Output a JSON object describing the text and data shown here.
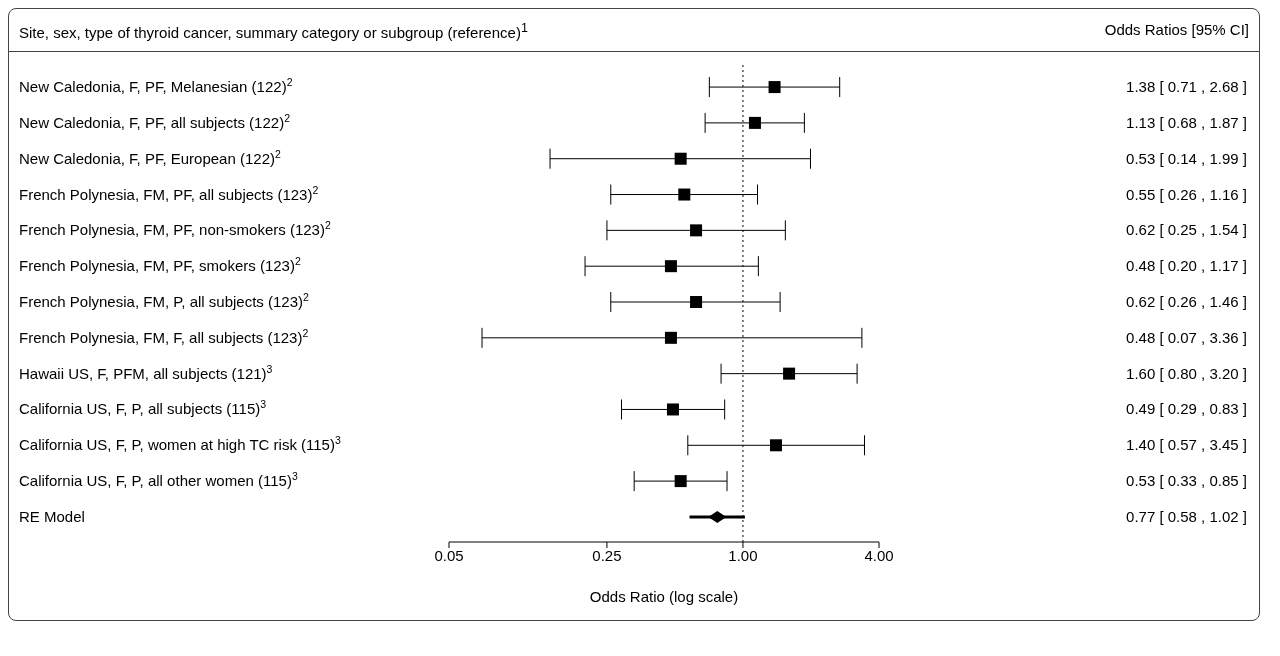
{
  "chart_data": {
    "type": "scatter",
    "orientation": "horizontal",
    "annotations": [
      "Site, sex, type of thyroid cancer, summary category or subgroup (reference)$^{1}$",
      "Odds Ratios [95% CI]"
    ],
    "xlabel": "Odds Ratio (log scale)",
    "categories": [
      "New Caledonia, F, PF, Melanesian (122)$^{2}$",
      "New Caledonia, F, PF, all subjects (122)$^{2}$",
      "New Caledonia, F, PF, European (122)$^{2}$",
      "French Polynesia, FM, PF, all subjects (123)$^{2}$",
      "French Polynesia, FM, PF, non-smokers (123)$^{2}$",
      "French Polynesia, FM, PF, smokers (123)$^{2}$",
      "French Polynesia, FM, P, all subjects (123)$^{2}$",
      "French Polynesia, FM, F, all subjects (123)$^{2}$",
      "Hawaii US, F, PFM, all subjects (121)$^{3}$",
      "California US, F, P, all subjects (115)$^{3}$",
      "California US, F, P, women at high TC risk (115)$^{3}$",
      "California US, F, P, all other women (115)$^{3}$",
      "RE Model"
    ],
    "series": [
      {
        "color": "#000000",
        "marker": "square",
        "values": [
          1.38,
          1.13,
          0.53,
          0.55,
          0.62,
          0.48,
          0.62,
          0.48,
          1.6,
          0.49,
          1.4,
          0.53,
          null
        ],
        "errors": [
          [
            0.71,
            2.68
          ],
          [
            0.68,
            1.87
          ],
          [
            0.14,
            1.99
          ],
          [
            0.26,
            1.16
          ],
          [
            0.25,
            1.54
          ],
          [
            0.2,
            1.17
          ],
          [
            0.26,
            1.46
          ],
          [
            0.07,
            3.36
          ],
          [
            0.8,
            3.2
          ],
          [
            0.29,
            0.83
          ],
          [
            0.57,
            3.45
          ],
          [
            0.33,
            0.85
          ],
          null
        ]
      },
      {
        "color": "#000000",
        "marker": "diamond",
        "values": [
          null,
          null,
          null,
          null,
          null,
          null,
          null,
          null,
          null,
          null,
          null,
          null,
          0.77
        ],
        "errors": [
          null,
          null,
          null,
          null,
          null,
          null,
          null,
          null,
          null,
          null,
          null,
          null,
          [
            0.58,
            1.02
          ]
        ]
      }
    ],
    "value_labels": [
      "1.38 [ 0.71 , 2.68 ]",
      "1.13 [ 0.68 , 1.87 ]",
      "0.53 [ 0.14 , 1.99 ]",
      "0.55 [ 0.26 , 1.16 ]",
      "0.62 [ 0.25 , 1.54 ]",
      "0.48 [ 0.20 , 1.17 ]",
      "0.62 [ 0.26 , 1.46 ]",
      "0.48 [ 0.07 , 3.36 ]",
      "1.60 [ 0.80 , 3.20 ]",
      "0.49 [ 0.29 , 0.83 ]",
      "1.40 [ 0.57 , 3.45 ]",
      "0.53 [ 0.33 , 0.85 ]",
      "0.77 [ 0.58 , 1.02 ]"
    ],
    "log": "x",
    "xlim": [
      0.05,
      4
    ],
    "xticks": [
      {
        "value": 0.05,
        "label": "0.05"
      },
      {
        "value": 0.25,
        "label": "0.25"
      },
      {
        "value": 1,
        "label": "1.00"
      },
      {
        "value": 4,
        "label": "4.00"
      }
    ],
    "ref_lines": [
      {
        "axis": "x",
        "value": 1,
        "label": null,
        "color": "#000000",
        "line_style": "dotted"
      }
    ],
    "grid": false,
    "legend": false
  }
}
